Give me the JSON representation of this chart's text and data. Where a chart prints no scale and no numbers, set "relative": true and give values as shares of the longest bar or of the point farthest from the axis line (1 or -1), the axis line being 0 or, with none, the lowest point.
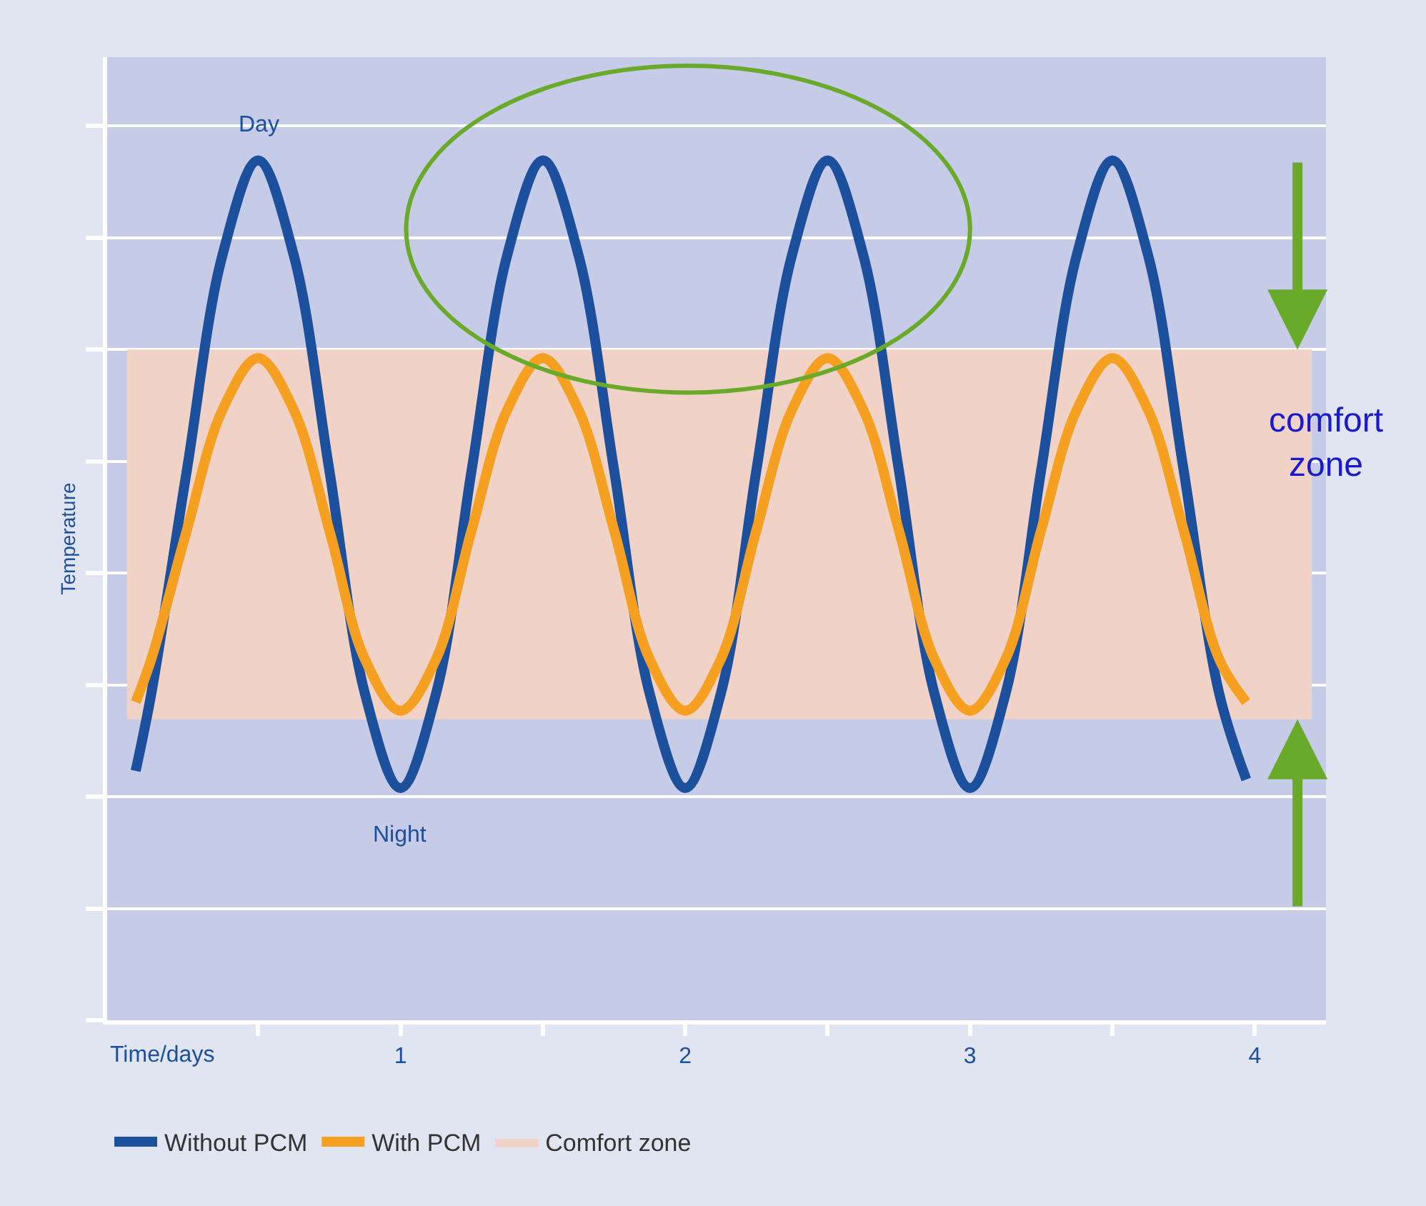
{
  "chart_data": {
    "type": "line",
    "relative": true,
    "xlabel": "Time/days",
    "ylabel": "Temperature",
    "x": [
      0.07,
      0.125,
      0.25,
      0.375,
      0.5,
      0.625,
      0.75,
      0.875,
      1.0,
      1.125,
      1.25,
      1.375,
      1.5,
      1.625,
      1.75,
      1.875,
      2.0,
      2.125,
      2.25,
      2.375,
      2.5,
      2.625,
      2.75,
      2.875,
      3.0,
      3.125,
      3.25,
      3.375,
      3.5,
      3.625,
      3.75,
      3.875,
      3.97
    ],
    "series": [
      {
        "name": "Without PCM",
        "color": "#1c4f9c",
        "values": [
          0.29,
          0.38,
          0.64,
          0.89,
          1.0,
          0.89,
          0.64,
          0.38,
          0.27,
          0.38,
          0.64,
          0.89,
          1.0,
          0.89,
          0.64,
          0.38,
          0.27,
          0.38,
          0.64,
          0.89,
          1.0,
          0.89,
          0.64,
          0.38,
          0.27,
          0.38,
          0.64,
          0.89,
          1.0,
          0.89,
          0.64,
          0.38,
          0.28
        ]
      },
      {
        "name": "With PCM",
        "color": "#f6a021",
        "values": [
          0.37,
          0.42,
          0.57,
          0.71,
          0.77,
          0.71,
          0.57,
          0.42,
          0.36,
          0.42,
          0.57,
          0.71,
          0.77,
          0.71,
          0.57,
          0.42,
          0.36,
          0.42,
          0.57,
          0.71,
          0.77,
          0.71,
          0.57,
          0.42,
          0.36,
          0.42,
          0.57,
          0.71,
          0.77,
          0.71,
          0.57,
          0.42,
          0.37
        ]
      }
    ],
    "bands": [
      {
        "axis": "y",
        "from": 0.35,
        "to": 0.78,
        "label": "Comfort zone",
        "color": "#f0d3c6"
      }
    ],
    "xlim": [
      -0.03,
      4.25
    ],
    "xticks": [
      {
        "value": 0.5,
        "label": null
      },
      1,
      {
        "value": 1.5,
        "label": null
      },
      2,
      {
        "value": 2.5,
        "label": null
      },
      3,
      {
        "value": 3.5,
        "label": null
      },
      4
    ],
    "annotations": [
      {
        "text": "Day",
        "x": 0.5,
        "y": 1.0
      },
      {
        "text": "Night",
        "x": 1.0,
        "y": 0.27
      },
      "comfort zone"
    ],
    "grid": "y",
    "legend": "bottom",
    "marker": "none",
    "line_style": "solid"
  }
}
